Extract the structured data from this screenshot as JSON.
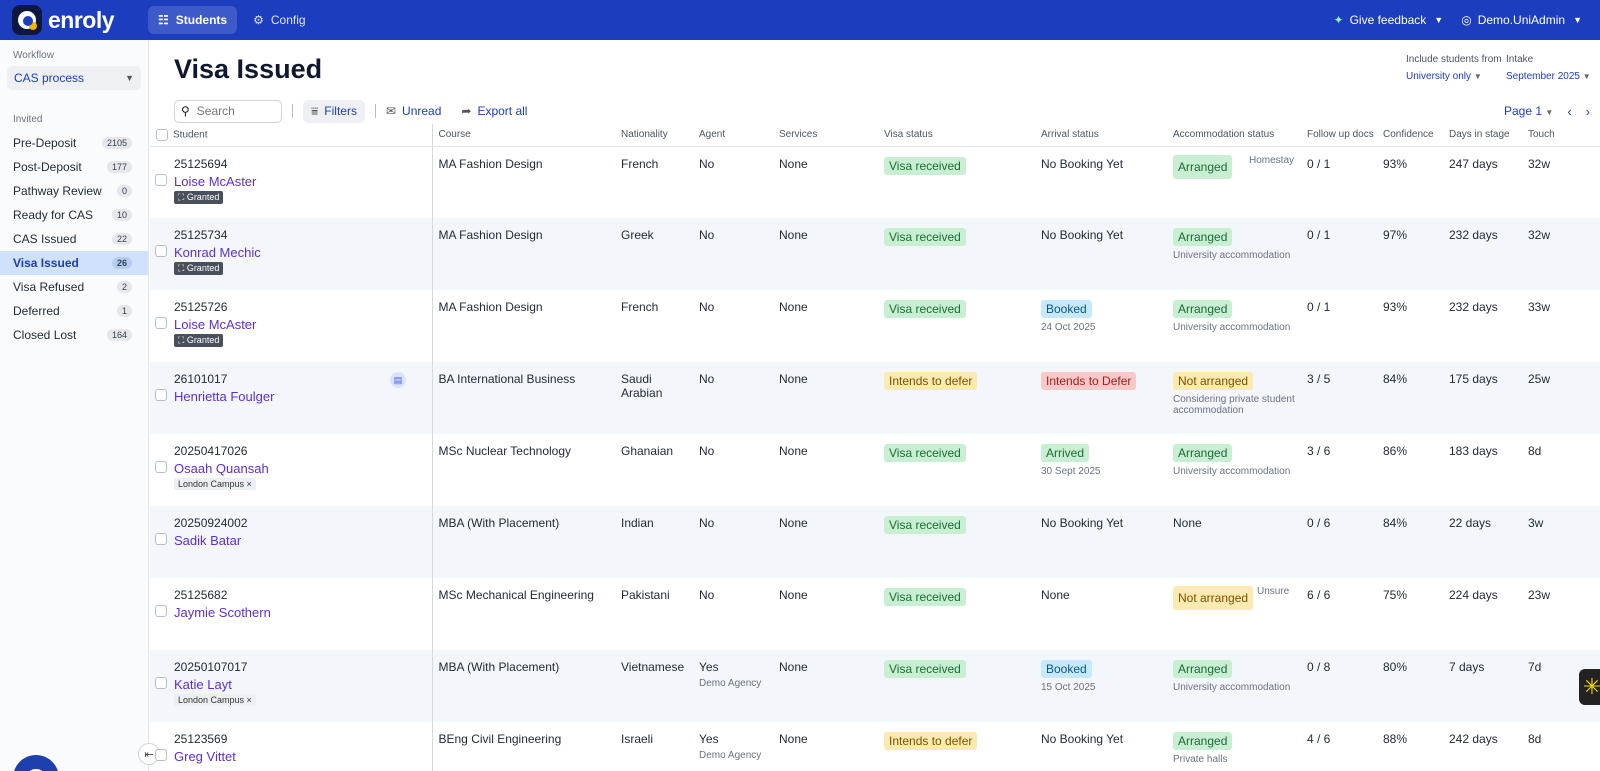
{
  "topbar": {
    "brand": "enroly",
    "nav": [
      {
        "label": "Students"
      },
      {
        "label": "Config"
      }
    ],
    "feedback": "Give feedback",
    "user": "Demo.UniAdmin"
  },
  "sidebar": {
    "workflow_label": "Workflow",
    "workflow_value": "CAS process",
    "section_label": "Invited",
    "items": [
      {
        "label": "Pre-Deposit",
        "count": "2105"
      },
      {
        "label": "Post-Deposit",
        "count": "177"
      },
      {
        "label": "Pathway Review",
        "count": "0"
      },
      {
        "label": "Ready for CAS",
        "count": "10"
      },
      {
        "label": "CAS Issued",
        "count": "22"
      },
      {
        "label": "Visa Issued",
        "count": "26"
      },
      {
        "label": "Visa Refused",
        "count": "2"
      },
      {
        "label": "Deferred",
        "count": "1"
      },
      {
        "label": "Closed Lost",
        "count": "164"
      }
    ]
  },
  "main": {
    "title": "Visa Issued",
    "include_label": "Include students from",
    "intake_label": "Intake",
    "include_value": "University only",
    "intake_value": "September 2025",
    "search_placeholder": "Search",
    "filters": "Filters",
    "unread": "Unread",
    "export": "Export all",
    "page": "Page 1"
  },
  "table": {
    "headers": [
      "Student",
      "Course",
      "Nationality",
      "Agent",
      "Services",
      "Visa status",
      "Arrival status",
      "Accommodation status",
      "Follow up docs",
      "Confidence",
      "Days in stage",
      "Touch"
    ],
    "rows": [
      {
        "id": "25125694",
        "name": "Loise McAster",
        "tag": "Granted",
        "course": "MA Fashion Design",
        "nationality": "French",
        "agent": "No",
        "agent_sub": "",
        "services": "None",
        "visa": "Visa received",
        "arrival": "No Booking Yet",
        "arrival_sub": "",
        "acc": "Arranged",
        "acc_note": "Homestay",
        "acc_sub": "",
        "docs": "0 / 1",
        "conf": "93%",
        "days": "247 days",
        "touch": "32w"
      },
      {
        "id": "25125734",
        "name": "Konrad Mechic",
        "tag": "Granted",
        "course": "MA Fashion Design",
        "nationality": "Greek",
        "agent": "No",
        "agent_sub": "",
        "services": "None",
        "visa": "Visa received",
        "arrival": "No Booking Yet",
        "arrival_sub": "",
        "acc": "Arranged",
        "acc_note": "",
        "acc_sub": "University accommodation",
        "docs": "0 / 1",
        "conf": "97%",
        "days": "232 days",
        "touch": "32w"
      },
      {
        "id": "25125726",
        "name": "Loise McAster",
        "tag": "Granted",
        "course": "MA Fashion Design",
        "nationality": "French",
        "agent": "No",
        "agent_sub": "",
        "services": "None",
        "visa": "Visa received",
        "arrival": "Booked",
        "arrival_sub": "24 Oct 2025",
        "acc": "Arranged",
        "acc_note": "",
        "acc_sub": "University accommodation",
        "docs": "0 / 1",
        "conf": "93%",
        "days": "232 days",
        "touch": "33w"
      },
      {
        "id": "26101017",
        "name": "Henrietta Foulger",
        "tag": "",
        "course": "BA International Business",
        "nationality": "Saudi Arabian",
        "agent": "No",
        "agent_sub": "",
        "services": "None",
        "visa": "Intends to defer",
        "arrival": "Intends to Defer",
        "arrival_sub": "",
        "acc": "Not arranged",
        "acc_note": "",
        "acc_sub": "Considering private student accommodation",
        "docs": "3 / 5",
        "conf": "84%",
        "days": "175 days",
        "touch": "25w"
      },
      {
        "id": "20250417026",
        "name": "Osaah Quansah",
        "tag": "London Campus",
        "course": "MSc Nuclear Technology",
        "nationality": "Ghanaian",
        "agent": "No",
        "agent_sub": "",
        "services": "None",
        "visa": "Visa received",
        "arrival": "Arrived",
        "arrival_sub": "30 Sept 2025",
        "acc": "Arranged",
        "acc_note": "",
        "acc_sub": "University accommodation",
        "docs": "3 / 6",
        "conf": "86%",
        "days": "183 days",
        "touch": "8d"
      },
      {
        "id": "20250924002",
        "name": "Sadik Batar",
        "tag": "",
        "course": "MBA (With Placement)",
        "nationality": "Indian",
        "agent": "No",
        "agent_sub": "",
        "services": "None",
        "visa": "Visa received",
        "arrival": "No Booking Yet",
        "arrival_sub": "",
        "acc": "None",
        "acc_note": "",
        "acc_sub": "",
        "docs": "0 / 6",
        "conf": "84%",
        "days": "22 days",
        "touch": "3w"
      },
      {
        "id": "25125682",
        "name": "Jaymie Scothern",
        "tag": "",
        "course": "MSc Mechanical Engineering",
        "nationality": "Pakistani",
        "agent": "No",
        "agent_sub": "",
        "services": "None",
        "visa": "Visa received",
        "arrival": "None",
        "arrival_sub": "",
        "acc": "Not arranged",
        "acc_note": "Unsure",
        "acc_sub": "",
        "docs": "6 / 6",
        "conf": "75%",
        "days": "224 days",
        "touch": "23w"
      },
      {
        "id": "20250107017",
        "name": "Katie Layt",
        "tag": "London Campus",
        "course": "MBA (With Placement)",
        "nationality": "Vietnamese",
        "agent": "Yes",
        "agent_sub": "Demo Agency",
        "services": "None",
        "visa": "Visa received",
        "arrival": "Booked",
        "arrival_sub": "15 Oct 2025",
        "acc": "Arranged",
        "acc_note": "",
        "acc_sub": "University accommodation",
        "docs": "0 / 8",
        "conf": "80%",
        "days": "7 days",
        "touch": "7d"
      },
      {
        "id": "25123569",
        "name": "Greg Vittet",
        "tag": "",
        "course": "BEng Civil Engineering",
        "nationality": "Israeli",
        "agent": "Yes",
        "agent_sub": "Demo Agency",
        "services": "None",
        "visa": "Intends to defer",
        "arrival": "No Booking Yet",
        "arrival_sub": "",
        "acc": "Arranged",
        "acc_note": "",
        "acc_sub": "Private halls",
        "docs": "4 / 6",
        "conf": "88%",
        "days": "242 days",
        "touch": "8d"
      }
    ]
  }
}
